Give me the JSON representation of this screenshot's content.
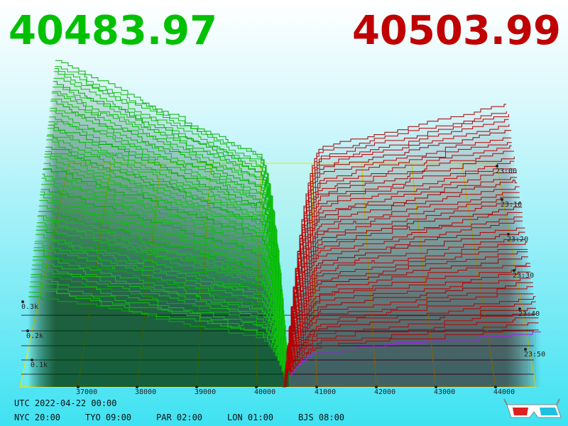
{
  "header": {
    "bid_price": "40483.97",
    "ask_price": "40503.99"
  },
  "price_axis": {
    "ticks": [
      "37000",
      "38000",
      "39000",
      "40000",
      "41000",
      "42000",
      "43000",
      "44000"
    ]
  },
  "time_axis": {
    "ticks": [
      "23:00",
      "23:10",
      "23:20",
      "23:30",
      "23:40",
      "23:50"
    ]
  },
  "depth_axis": {
    "ticks": [
      "0.3k",
      "0.2k",
      "0.1k"
    ]
  },
  "footer": {
    "utc": "UTC 2022-04-22 00:00",
    "zones": [
      "NYC 20:00",
      "TYO 09:00",
      "PAR 02:00",
      "LON 01:00",
      "BJS 08:00"
    ]
  }
}
